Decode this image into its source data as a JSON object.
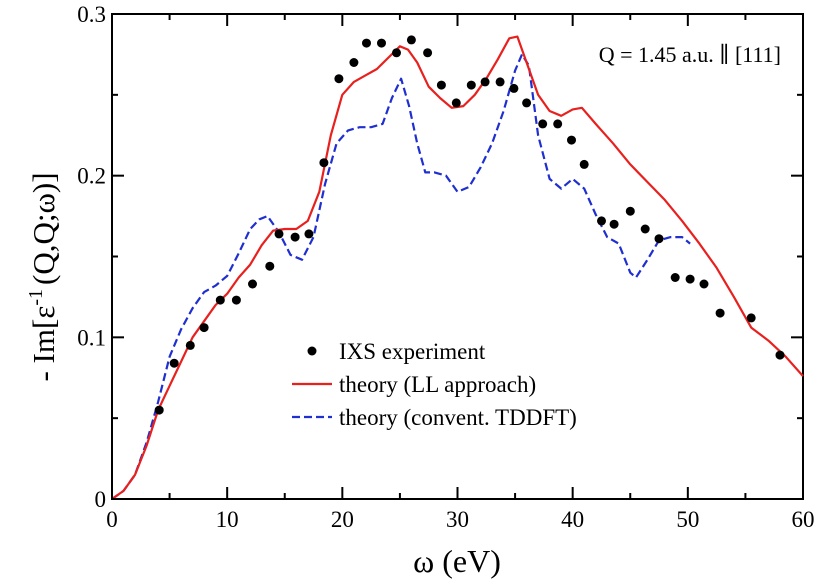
{
  "chart_data": {
    "type": "line",
    "title": "",
    "annotation": "Q = 1.45 a.u. ∥ [111]",
    "xlabel": "ω (eV)",
    "ylabel_prefix": "- Im[ε",
    "ylabel_sup": "-1",
    "ylabel_suffix": "(Q,Q;ω)]",
    "xlim": [
      0,
      60
    ],
    "ylim": [
      0,
      0.3
    ],
    "xticks": [
      0,
      10,
      20,
      30,
      40,
      50,
      60
    ],
    "xtick_labels": [
      "0",
      "10",
      "20",
      "30",
      "40",
      "50",
      "60"
    ],
    "yticks": [
      0,
      0.1,
      0.2,
      0.3
    ],
    "ytick_labels": [
      "0",
      "0.1",
      "0.2",
      "0.3"
    ],
    "grid": false,
    "legend_position": "bottom-center",
    "series": [
      {
        "name": "IXS experiment",
        "kind": "scatter",
        "color": "#000000",
        "x": [
          4.1,
          5.4,
          6.8,
          8.0,
          9.4,
          10.8,
          12.2,
          13.7,
          14.5,
          15.9,
          17.1,
          18.4,
          19.7,
          21.0,
          22.1,
          23.4,
          24.7,
          26.0,
          27.4,
          28.6,
          29.9,
          31.2,
          32.4,
          33.7,
          34.9,
          36.0,
          37.4,
          38.7,
          39.9,
          41.0,
          42.5,
          43.6,
          45.0,
          46.3,
          47.5,
          48.9,
          50.2,
          51.4,
          52.8,
          55.5,
          58.0
        ],
        "y": [
          0.055,
          0.084,
          0.095,
          0.106,
          0.123,
          0.123,
          0.133,
          0.144,
          0.164,
          0.162,
          0.164,
          0.208,
          0.26,
          0.27,
          0.282,
          0.282,
          0.276,
          0.284,
          0.276,
          0.256,
          0.245,
          0.256,
          0.258,
          0.258,
          0.254,
          0.245,
          0.232,
          0.232,
          0.222,
          0.207,
          0.172,
          0.17,
          0.178,
          0.167,
          0.161,
          0.137,
          0.136,
          0.133,
          0.115,
          0.112,
          0.089
        ]
      },
      {
        "name": "theory (LL approach)",
        "kind": "line",
        "color": "#e8201e",
        "dash": "solid",
        "x": [
          0,
          1,
          2,
          3,
          4,
          5,
          6,
          7,
          8,
          9,
          10,
          11,
          12,
          13,
          14,
          15,
          16,
          17,
          18,
          19,
          20,
          21,
          22,
          23,
          24,
          25,
          25.7,
          26.5,
          27.5,
          28.5,
          29.5,
          30.5,
          31.5,
          32.5,
          33.5,
          34.5,
          35.2,
          36,
          37,
          38,
          39,
          40,
          40.8,
          42,
          43.5,
          45,
          46.5,
          48,
          49.5,
          51,
          52.5,
          54,
          55.5,
          57,
          58.5,
          60
        ],
        "y": [
          0,
          0.005,
          0.015,
          0.033,
          0.055,
          0.07,
          0.085,
          0.1,
          0.11,
          0.12,
          0.127,
          0.137,
          0.145,
          0.157,
          0.166,
          0.167,
          0.167,
          0.172,
          0.19,
          0.225,
          0.25,
          0.258,
          0.262,
          0.266,
          0.273,
          0.28,
          0.278,
          0.27,
          0.255,
          0.248,
          0.242,
          0.243,
          0.25,
          0.26,
          0.272,
          0.285,
          0.286,
          0.27,
          0.25,
          0.24,
          0.237,
          0.241,
          0.242,
          0.232,
          0.22,
          0.207,
          0.196,
          0.185,
          0.172,
          0.158,
          0.143,
          0.125,
          0.106,
          0.098,
          0.088,
          0.076
        ]
      },
      {
        "name": "theory (convent. TDDFT)",
        "kind": "line",
        "color": "#1f2fd0",
        "dash": "dashed",
        "x": [
          0,
          1,
          2,
          3,
          4,
          5,
          6,
          7,
          8,
          9,
          10,
          11,
          12,
          12.8,
          13.5,
          14.5,
          15.5,
          16.5,
          17.5,
          18.5,
          19.5,
          20.5,
          21.5,
          22.5,
          23.5,
          24.3,
          25.1,
          25.8,
          26.5,
          27.2,
          28,
          29,
          30,
          31,
          32,
          33,
          34,
          35,
          35.6,
          36.2,
          37,
          38,
          39,
          40,
          41,
          42,
          43,
          44,
          45,
          45.5,
          46.5,
          47.5,
          48.5,
          49.5,
          50.2
        ],
        "y": [
          0,
          0.005,
          0.015,
          0.035,
          0.06,
          0.088,
          0.105,
          0.118,
          0.128,
          0.132,
          0.138,
          0.152,
          0.167,
          0.173,
          0.175,
          0.165,
          0.151,
          0.148,
          0.162,
          0.195,
          0.22,
          0.228,
          0.23,
          0.23,
          0.232,
          0.248,
          0.26,
          0.243,
          0.22,
          0.202,
          0.202,
          0.2,
          0.19,
          0.193,
          0.205,
          0.22,
          0.24,
          0.265,
          0.275,
          0.268,
          0.225,
          0.198,
          0.192,
          0.198,
          0.192,
          0.176,
          0.162,
          0.158,
          0.14,
          0.137,
          0.148,
          0.16,
          0.162,
          0.162,
          0.158
        ]
      }
    ]
  }
}
